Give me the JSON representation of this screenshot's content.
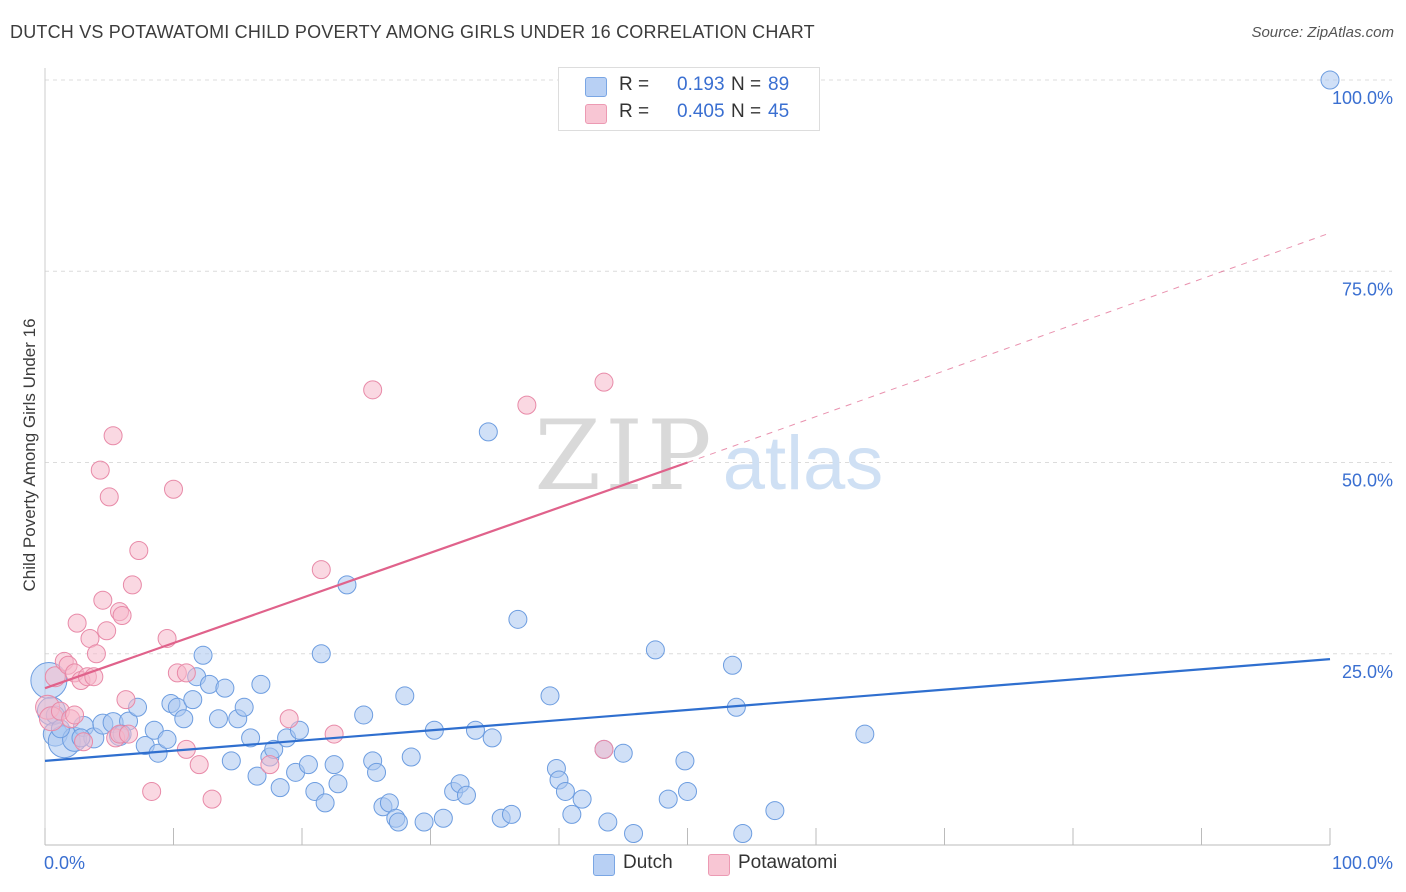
{
  "title": "DUTCH VS POTAWATOMI CHILD POVERTY AMONG GIRLS UNDER 16 CORRELATION CHART",
  "source": "Source: ZipAtlas.com",
  "watermark": {
    "zip": "ZIP",
    "atlas": "atlas"
  },
  "legend": {
    "dutch": {
      "r_label": "R =",
      "r_value": "0.193",
      "n_label": "N =",
      "n_value": "89"
    },
    "potawatomi": {
      "r_label": "R =",
      "r_value": "0.405",
      "n_label": "N =",
      "n_value": "45"
    }
  },
  "bottom_legend": {
    "dutch": "Dutch",
    "potawatomi": "Potawatomi"
  },
  "chart_data": {
    "type": "scatter",
    "title": "DUTCH VS POTAWATOMI CHILD POVERTY AMONG GIRLS UNDER 16 CORRELATION CHART",
    "xlabel": "",
    "ylabel": "Child Poverty Among Girls Under 16",
    "xlim": [
      0,
      100
    ],
    "ylim": [
      0,
      100
    ],
    "x_tick_labels": [
      "0.0%",
      "100.0%"
    ],
    "y_tick_labels": [
      "25.0%",
      "50.0%",
      "75.0%",
      "100.0%"
    ],
    "y_ticks": [
      25,
      50,
      75,
      100
    ],
    "grid": true,
    "legend_position": "top-center",
    "colors": {
      "dutch_fill": "#a9c7f1",
      "dutch_stroke": "#6d9de0",
      "dutch_line": "#2f6fcf",
      "potawatomi_fill": "#f6b8cb",
      "potawatomi_stroke": "#e88aa8",
      "potawatomi_line": "#e0628b",
      "tick_label": "#3a6fd1"
    },
    "series": [
      {
        "name": "Dutch",
        "trend": {
          "x": [
            0,
            100
          ],
          "y": [
            11,
            24.3
          ]
        },
        "points": [
          [
            0.3,
            21.5,
            18
          ],
          [
            0.5,
            17.5,
            14
          ],
          [
            0.8,
            14.5,
            12
          ],
          [
            1.5,
            13.5,
            16
          ],
          [
            2.3,
            13.8,
            12
          ],
          [
            3.0,
            15.5,
            10
          ],
          [
            3.8,
            14.0,
            10
          ],
          [
            4.5,
            15.8,
            10
          ],
          [
            5.3,
            16.0,
            10
          ],
          [
            5.8,
            14.3,
            10
          ],
          [
            6.5,
            16.2,
            9
          ],
          [
            7.2,
            18.0,
            9
          ],
          [
            7.8,
            13.0,
            9
          ],
          [
            8.5,
            15.0,
            9
          ],
          [
            8.8,
            12.0,
            9
          ],
          [
            9.5,
            13.8,
            9
          ],
          [
            9.8,
            18.5,
            9
          ],
          [
            10.3,
            18.0,
            9
          ],
          [
            10.8,
            16.5,
            9
          ],
          [
            11.8,
            22.0,
            9
          ],
          [
            11.5,
            19.0,
            9
          ],
          [
            12.3,
            24.8,
            9
          ],
          [
            12.8,
            21.0,
            9
          ],
          [
            13.5,
            16.5,
            9
          ],
          [
            14.0,
            20.5,
            9
          ],
          [
            14.5,
            11.0,
            9
          ],
          [
            15.0,
            16.5,
            9
          ],
          [
            15.5,
            18.0,
            9
          ],
          [
            16.0,
            14.0,
            9
          ],
          [
            16.5,
            9.0,
            9
          ],
          [
            16.8,
            21.0,
            9
          ],
          [
            17.5,
            11.5,
            9
          ],
          [
            17.8,
            12.5,
            9
          ],
          [
            18.3,
            7.5,
            9
          ],
          [
            18.8,
            14.0,
            9
          ],
          [
            19.5,
            9.5,
            9
          ],
          [
            19.8,
            15.0,
            9
          ],
          [
            20.5,
            10.5,
            9
          ],
          [
            21.0,
            7.0,
            9
          ],
          [
            21.5,
            25.0,
            9
          ],
          [
            21.8,
            5.5,
            9
          ],
          [
            22.5,
            10.5,
            9
          ],
          [
            22.8,
            8.0,
            9
          ],
          [
            23.5,
            34.0,
            9
          ],
          [
            24.8,
            17.0,
            9
          ],
          [
            25.5,
            11.0,
            9
          ],
          [
            25.8,
            9.5,
            9
          ],
          [
            26.3,
            5.0,
            9
          ],
          [
            26.8,
            5.5,
            9
          ],
          [
            27.3,
            3.5,
            9
          ],
          [
            27.5,
            3.0,
            9
          ],
          [
            28.0,
            19.5,
            9
          ],
          [
            28.5,
            11.5,
            9
          ],
          [
            29.5,
            3.0,
            9
          ],
          [
            30.3,
            15.0,
            9
          ],
          [
            31.0,
            3.5,
            9
          ],
          [
            31.8,
            7.0,
            9
          ],
          [
            32.3,
            8.0,
            9
          ],
          [
            32.8,
            6.5,
            9
          ],
          [
            33.5,
            15.0,
            9
          ],
          [
            34.5,
            54.0,
            9
          ],
          [
            34.8,
            14.0,
            9
          ],
          [
            35.5,
            3.5,
            9
          ],
          [
            36.3,
            4.0,
            9
          ],
          [
            36.8,
            29.5,
            9
          ],
          [
            39.3,
            19.5,
            9
          ],
          [
            39.8,
            10.0,
            9
          ],
          [
            40.0,
            8.5,
            9
          ],
          [
            40.5,
            7.0,
            9
          ],
          [
            41.0,
            4.0,
            9
          ],
          [
            41.8,
            6.0,
            9
          ],
          [
            43.5,
            12.5,
            9
          ],
          [
            43.8,
            3.0,
            9
          ],
          [
            45.0,
            12.0,
            9
          ],
          [
            45.8,
            1.5,
            9
          ],
          [
            47.5,
            25.5,
            9
          ],
          [
            48.5,
            6.0,
            9
          ],
          [
            49.8,
            11.0,
            9
          ],
          [
            50.0,
            7.0,
            9
          ],
          [
            53.5,
            23.5,
            9
          ],
          [
            53.8,
            18.0,
            9
          ],
          [
            54.3,
            1.5,
            9
          ],
          [
            56.8,
            4.5,
            9
          ],
          [
            63.8,
            14.5,
            9
          ],
          [
            100.0,
            100.0,
            9
          ],
          [
            0.8,
            17.0,
            9
          ],
          [
            1.2,
            15.2,
            9
          ],
          [
            2.8,
            14.0,
            9
          ],
          [
            6.0,
            14.5,
            9
          ]
        ]
      },
      {
        "name": "Potawatomi",
        "trend": {
          "x": [
            0,
            50
          ],
          "y": [
            20.5,
            50
          ],
          "dashed_x": [
            50,
            100
          ],
          "dashed_y": [
            50,
            80
          ]
        },
        "points": [
          [
            0.2,
            18.0,
            12
          ],
          [
            0.5,
            16.5,
            12
          ],
          [
            0.8,
            22.0,
            10
          ],
          [
            1.2,
            17.5,
            9
          ],
          [
            1.5,
            24.0,
            9
          ],
          [
            1.8,
            23.5,
            9
          ],
          [
            2.0,
            16.5,
            9
          ],
          [
            2.3,
            17.0,
            9
          ],
          [
            2.3,
            22.5,
            9
          ],
          [
            2.5,
            29.0,
            9
          ],
          [
            2.8,
            21.5,
            9
          ],
          [
            3.0,
            13.5,
            9
          ],
          [
            3.3,
            22.0,
            9
          ],
          [
            3.5,
            27.0,
            9
          ],
          [
            3.8,
            22.0,
            9
          ],
          [
            4.0,
            25.0,
            9
          ],
          [
            4.3,
            49.0,
            9
          ],
          [
            4.5,
            32.0,
            9
          ],
          [
            4.8,
            28.0,
            9
          ],
          [
            5.0,
            45.5,
            9
          ],
          [
            5.3,
            53.5,
            9
          ],
          [
            5.5,
            14.0,
            9
          ],
          [
            5.8,
            30.5,
            9
          ],
          [
            5.8,
            14.5,
            9
          ],
          [
            6.0,
            30.0,
            9
          ],
          [
            6.3,
            19.0,
            9
          ],
          [
            6.5,
            14.5,
            9
          ],
          [
            6.8,
            34.0,
            9
          ],
          [
            7.3,
            38.5,
            9
          ],
          [
            8.3,
            7.0,
            9
          ],
          [
            9.5,
            27.0,
            9
          ],
          [
            10.0,
            46.5,
            9
          ],
          [
            10.3,
            22.5,
            9
          ],
          [
            11.0,
            22.5,
            9
          ],
          [
            11.0,
            12.5,
            9
          ],
          [
            12.0,
            10.5,
            9
          ],
          [
            13.0,
            6.0,
            9
          ],
          [
            17.5,
            10.5,
            9
          ],
          [
            19.0,
            16.5,
            9
          ],
          [
            21.5,
            36.0,
            9
          ],
          [
            22.5,
            14.5,
            9
          ],
          [
            25.5,
            59.5,
            9
          ],
          [
            37.5,
            57.5,
            9
          ],
          [
            43.5,
            12.5,
            9
          ],
          [
            43.5,
            60.5,
            9
          ]
        ]
      }
    ]
  }
}
